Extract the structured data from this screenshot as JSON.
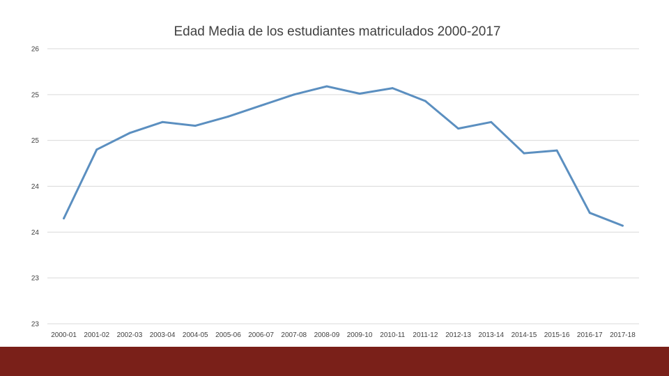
{
  "colors": {
    "series": "#5b8fc0",
    "footer": "#7a2019",
    "grid": "#d9d9d9"
  },
  "chart_data": {
    "type": "line",
    "title": "Edad Media de los estudiantes matriculados 2000-2017",
    "xlabel": "",
    "ylabel": "",
    "ylim": [
      23,
      26
    ],
    "ytick_values": [
      23,
      23.5,
      24,
      24.5,
      25,
      25.5,
      26
    ],
    "ytick_labels": [
      "23",
      "23",
      "24",
      "24",
      "25",
      "25",
      "26"
    ],
    "grid": true,
    "categories": [
      "2000-01",
      "2001-02",
      "2002-03",
      "2003-04",
      "2004-05",
      "2005-06",
      "2006-07",
      "2007-08",
      "2008-09",
      "2009-10",
      "2010-11",
      "2011-12",
      "2012-13",
      "2013-14",
      "2014-15",
      "2015-16",
      "2016-17",
      "2017-18"
    ],
    "series": [
      {
        "name": "Edad Media",
        "values": [
          24.15,
          24.9,
          25.08,
          25.2,
          25.16,
          25.26,
          25.38,
          25.5,
          25.59,
          25.51,
          25.57,
          25.43,
          25.13,
          25.2,
          24.86,
          24.89,
          24.21,
          24.07
        ]
      }
    ]
  }
}
